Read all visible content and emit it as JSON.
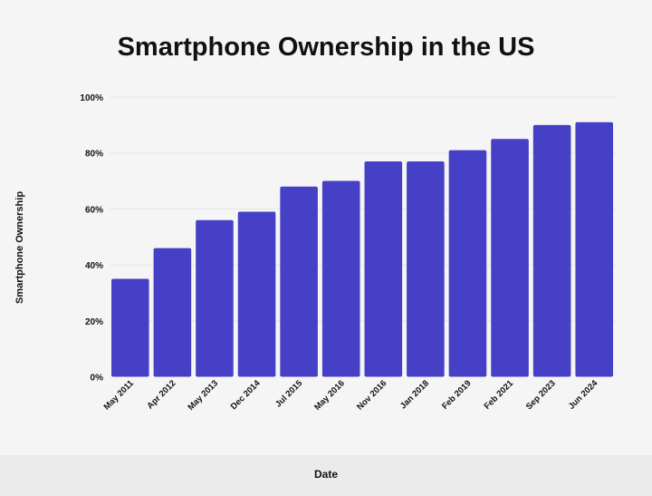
{
  "chart_data": {
    "type": "bar",
    "title": "Smartphone Ownership in the US",
    "xlabel": "Date",
    "ylabel": "Smartphone Ownership",
    "categories": [
      "May 2011",
      "Apr 2012",
      "May 2013",
      "Dec 2014",
      "Jul 2015",
      "May 2016",
      "Nov 2016",
      "Jan 2018",
      "Feb 2019",
      "Feb 2021",
      "Sep 2023",
      "Jun 2024"
    ],
    "values": [
      35,
      46,
      56,
      59,
      68,
      70,
      77,
      77,
      81,
      85,
      90,
      91
    ],
    "ylim": [
      0,
      100
    ],
    "yticks": [
      "0%",
      "20%",
      "40%",
      "60%",
      "80%",
      "100%"
    ],
    "grid": true,
    "colors": {
      "bar": "#4540c6",
      "grid": "#e6e6e6",
      "background": "#f5f5f5"
    }
  }
}
